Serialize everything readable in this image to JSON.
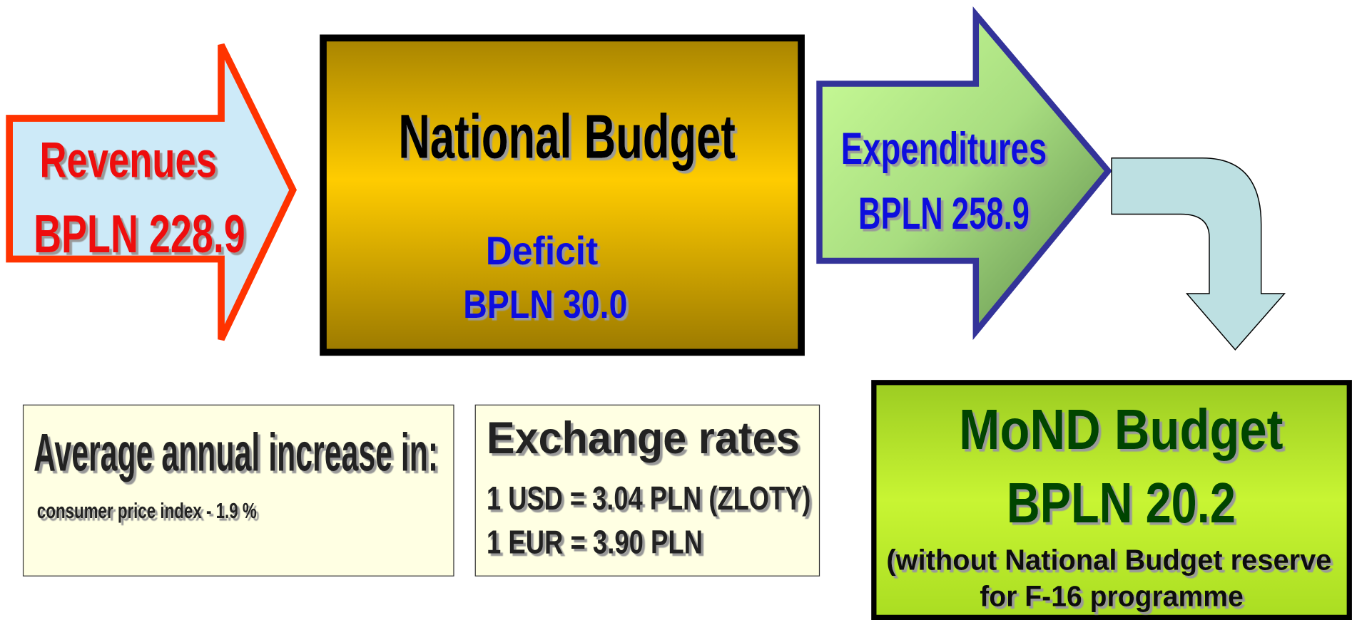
{
  "revenues": {
    "label": "Revenues",
    "amount": "BPLN 228.9"
  },
  "national_budget": {
    "title": "National Budget",
    "deficit_label": "Deficit",
    "deficit_amount": "BPLN 30.0"
  },
  "expenditures": {
    "label": "Expenditures",
    "amount": "BPLN 258.9"
  },
  "mond_budget": {
    "title": "MoND Budget",
    "amount": "BPLN 20.2",
    "note_lines": [
      "(without National Budget reserve",
      "for F-16 programme"
    ]
  },
  "inflation_box": {
    "title": "Average annual increase in:",
    "line": "consumer price index - 1.9 %"
  },
  "exchange_box": {
    "title": "Exchange rates",
    "lines": [
      "1 USD = 3.04 PLN   (ZLOTY)",
      "1 EUR  = 3.90 PLN"
    ]
  }
}
